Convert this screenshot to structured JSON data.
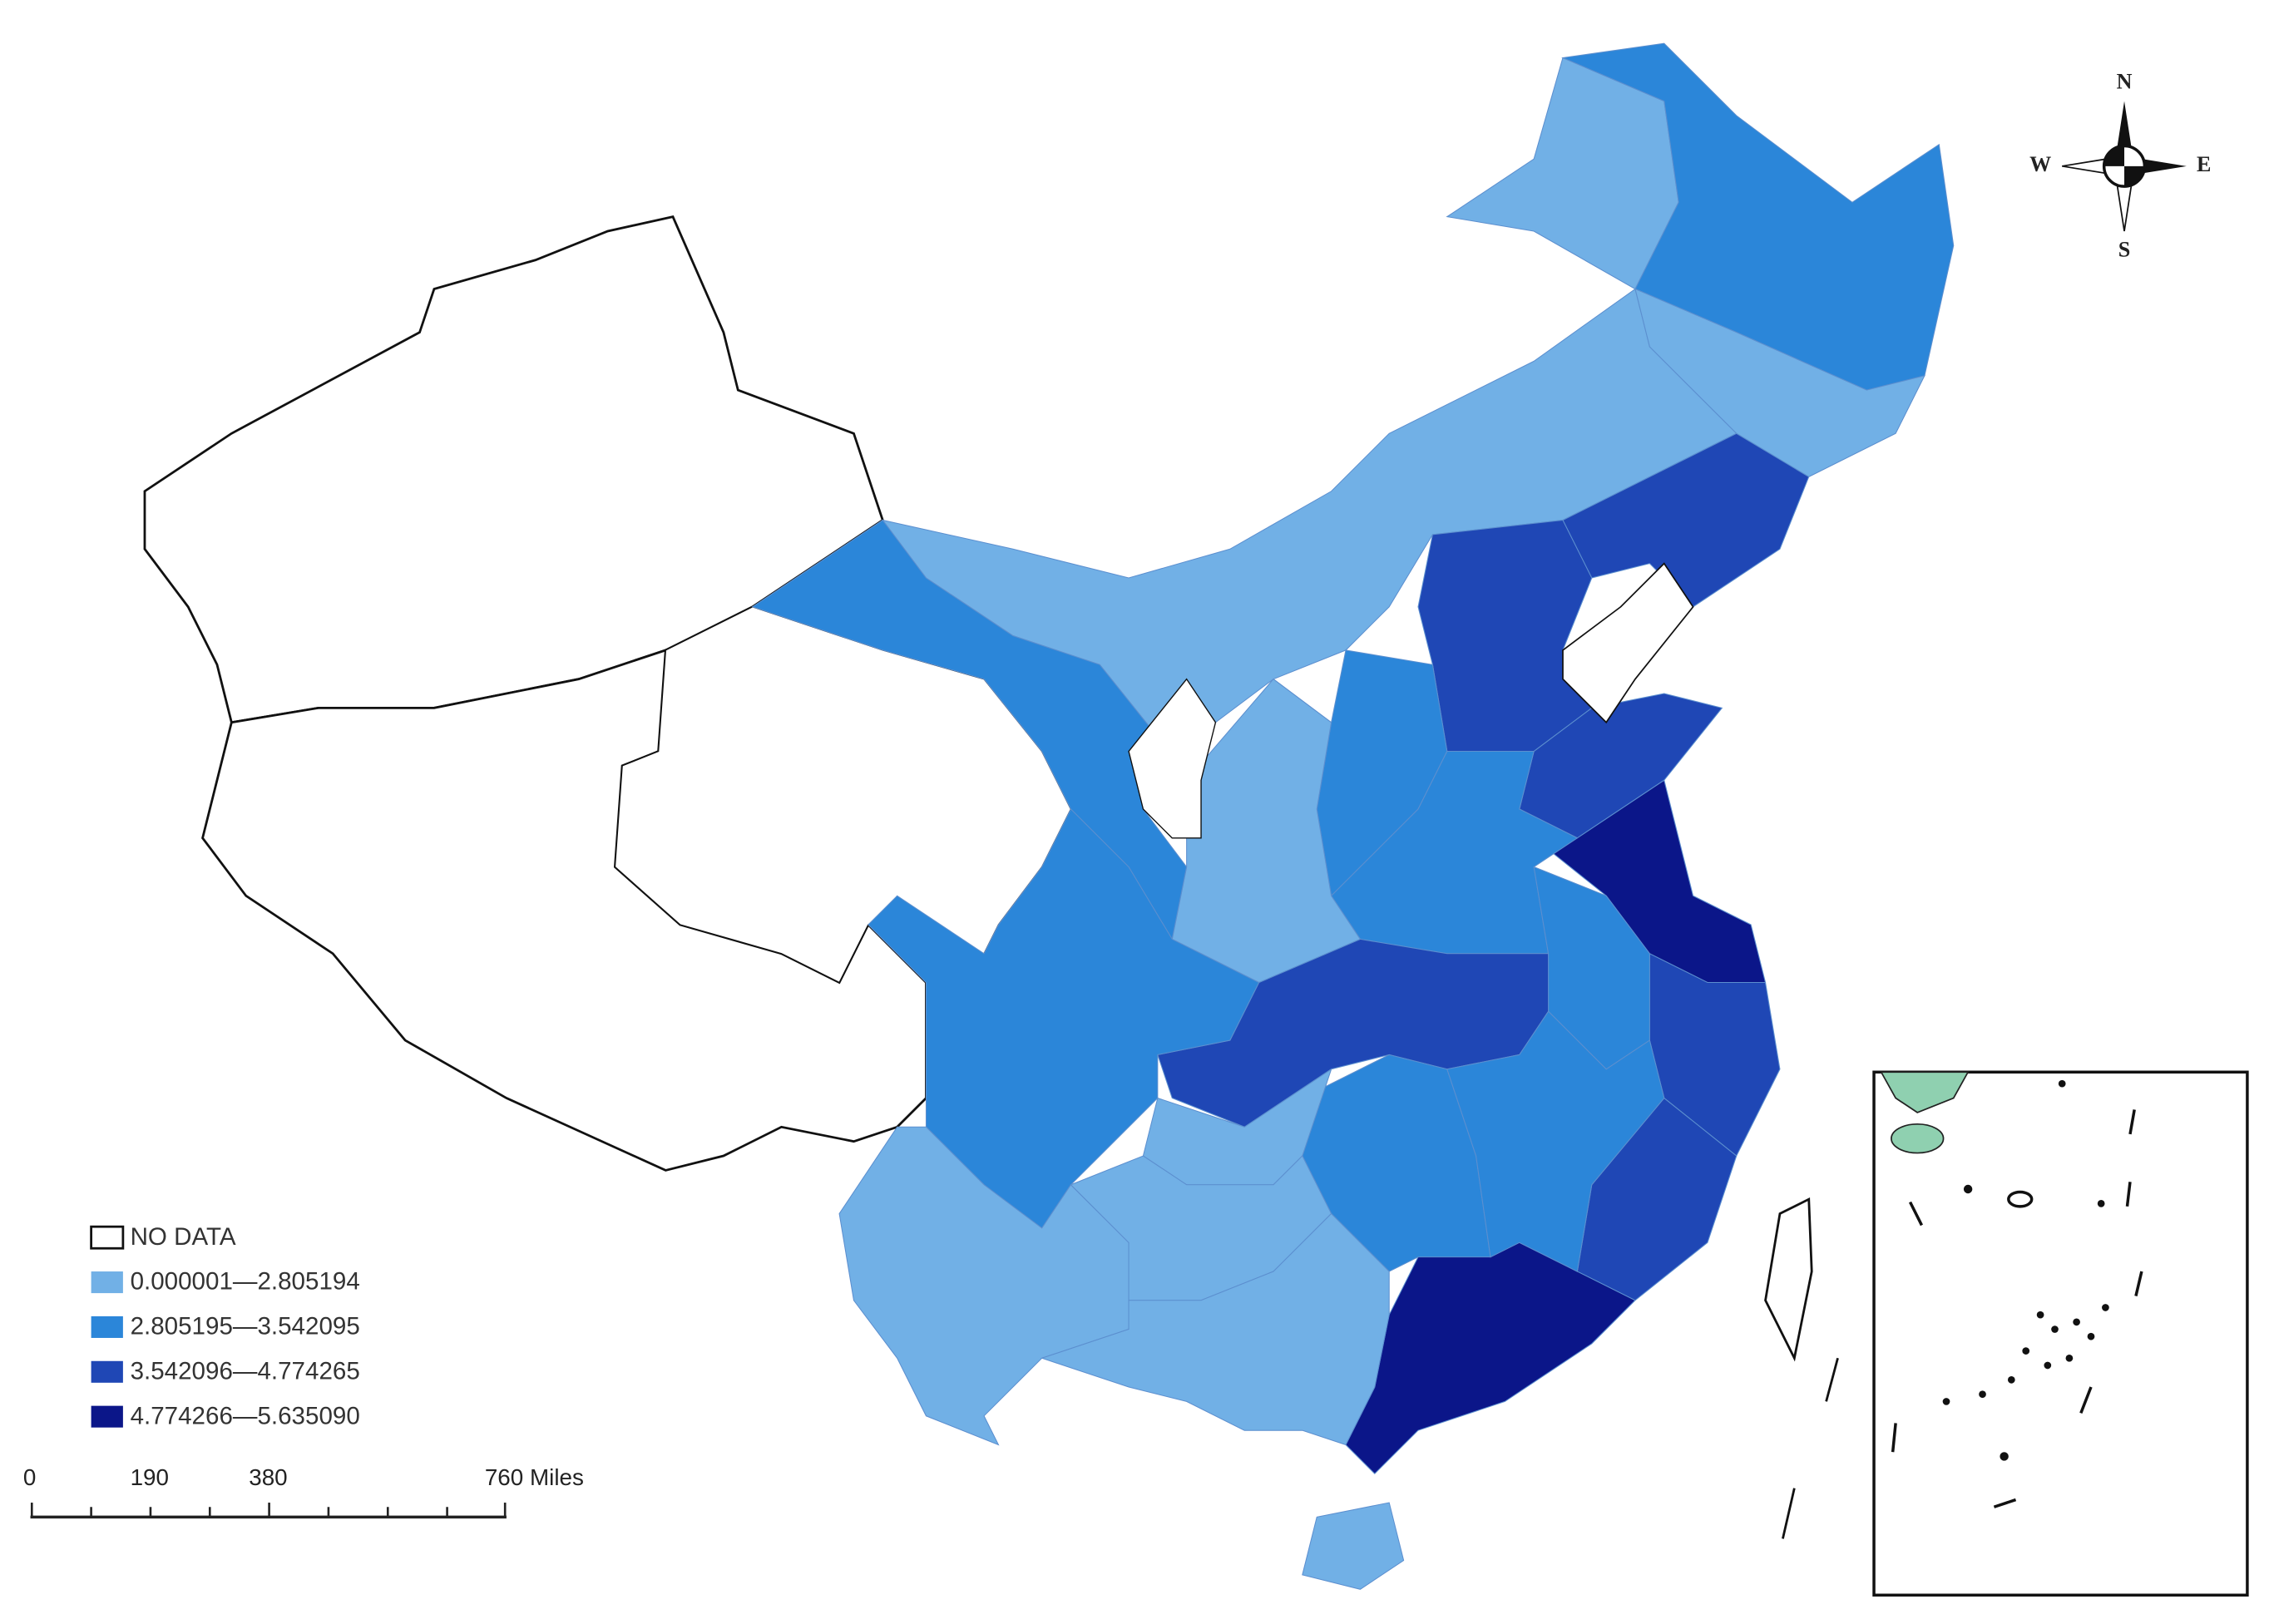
{
  "legend": {
    "items": [
      "NO DATA",
      "0.000001—2.805194",
      "2.805195—3.542095",
      "3.542096—4.774265",
      "4.774266—5.635090"
    ]
  },
  "scale_bar": {
    "labels": [
      "0",
      "190",
      "380",
      "760 Miles"
    ]
  },
  "compass": {
    "north": "N",
    "south": "S",
    "west": "W",
    "east": "E"
  }
}
